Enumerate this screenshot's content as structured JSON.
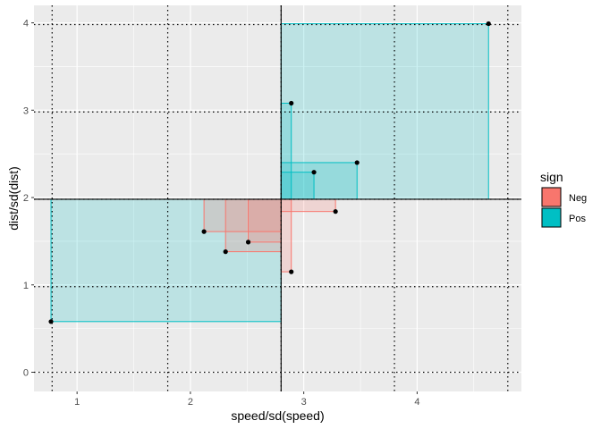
{
  "chart_data": {
    "type": "scatter",
    "xlabel": "speed/sd(speed)",
    "ylabel": "dist/sd(dist)",
    "xlim": [
      0.62,
      4.92
    ],
    "ylim": [
      -0.22,
      4.2
    ],
    "x_ticks": [
      1,
      2,
      3,
      4
    ],
    "y_ticks": [
      0,
      1,
      2,
      3,
      4
    ],
    "grid": true,
    "mean_point": {
      "x": 2.8,
      "y": 1.98
    },
    "dotted_v_lines": [
      0.78,
      1.8,
      2.8,
      3.8,
      4.8
    ],
    "dotted_h_lines": [
      0.0,
      0.98,
      1.98,
      2.98,
      3.98
    ],
    "legend": {
      "title": "sign",
      "position": "right",
      "entries": [
        {
          "label": "Neg",
          "color": "#F8766D"
        },
        {
          "label": "Pos",
          "color": "#00BFC4"
        }
      ]
    },
    "points": [
      {
        "x": 0.77,
        "y": 0.58,
        "sign": "Pos"
      },
      {
        "x": 2.12,
        "y": 1.61,
        "sign": "Neg"
      },
      {
        "x": 2.31,
        "y": 1.38,
        "sign": "Neg"
      },
      {
        "x": 2.51,
        "y": 1.49,
        "sign": "Neg"
      },
      {
        "x": 2.89,
        "y": 1.15,
        "sign": "Neg"
      },
      {
        "x": 3.28,
        "y": 1.84,
        "sign": "Neg"
      },
      {
        "x": 2.89,
        "y": 3.08,
        "sign": "Pos"
      },
      {
        "x": 3.09,
        "y": 2.29,
        "sign": "Pos"
      },
      {
        "x": 3.47,
        "y": 2.4,
        "sign": "Pos"
      },
      {
        "x": 4.63,
        "y": 3.99,
        "sign": "Pos"
      }
    ]
  },
  "colors": {
    "panel_bg": "#EBEBEB",
    "grid": "#FFFFFF",
    "neg": "#F8766D",
    "pos": "#00BFC4",
    "point": "#000000"
  }
}
